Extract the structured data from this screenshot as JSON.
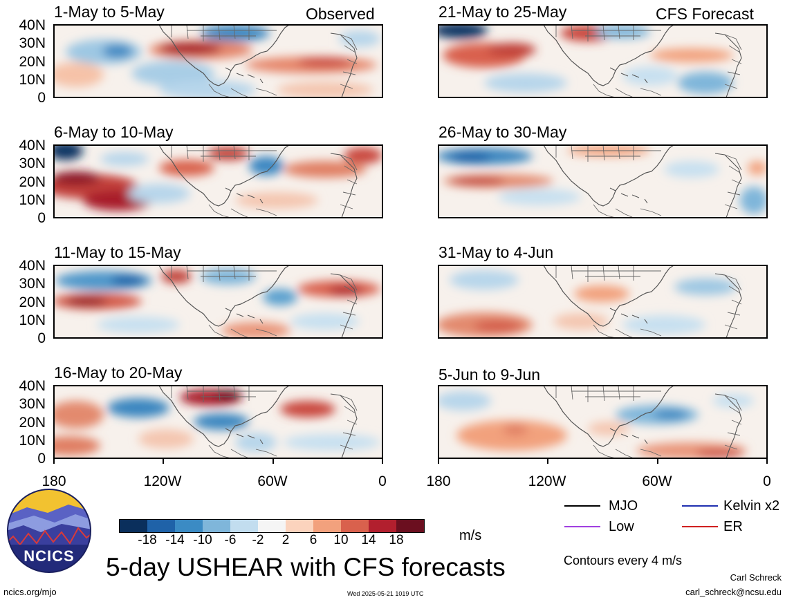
{
  "figure": {
    "title": "5-day USHEAR with CFS forecasts",
    "colorbar": {
      "ticks": [
        "-18",
        "-14",
        "-10",
        "-6",
        "-2",
        "2",
        "6",
        "10",
        "14",
        "18"
      ],
      "unit": "m/s",
      "colors": [
        "#0a2f5c",
        "#1f62a8",
        "#3b8bc4",
        "#7fb6da",
        "#c2ddef",
        "#f5f5f5",
        "#fbd3bd",
        "#f2a17d",
        "#d9614d",
        "#b21f2e",
        "#6b0f1f"
      ]
    },
    "y_ticks": [
      "40N",
      "30N",
      "20N",
      "10N",
      "0"
    ],
    "x_ticks": [
      "180",
      "120W",
      "60W",
      "0"
    ],
    "left_column": [
      {
        "title": "1-May to 5-May",
        "tag": "Observed"
      },
      {
        "title": "6-May to 10-May",
        "tag": ""
      },
      {
        "title": "11-May to 15-May",
        "tag": ""
      },
      {
        "title": "16-May to 20-May",
        "tag": ""
      }
    ],
    "right_column": [
      {
        "title": "21-May to 25-May",
        "tag": "CFS Forecast"
      },
      {
        "title": "26-May to 30-May",
        "tag": ""
      },
      {
        "title": "31-May to 4-Jun",
        "tag": ""
      },
      {
        "title": "5-Jun to 9-Jun",
        "tag": ""
      }
    ],
    "legend": {
      "mjo": {
        "label": "MJO",
        "color": "#000000"
      },
      "kelvin": {
        "label": "Kelvin x2",
        "color": "#1f2fb0"
      },
      "low": {
        "label": "Low",
        "color": "#a040e0"
      },
      "er": {
        "label": "ER",
        "color": "#d02020"
      }
    },
    "contour_note": "Contours every 4 m/s",
    "author": "Carl Schreck",
    "email": "carl_schreck@ncsu.edu",
    "site": "ncics.org/mjo",
    "timestamp": "Wed 2025-05-21 1019 UTC",
    "logo_text": "NCICS"
  }
}
